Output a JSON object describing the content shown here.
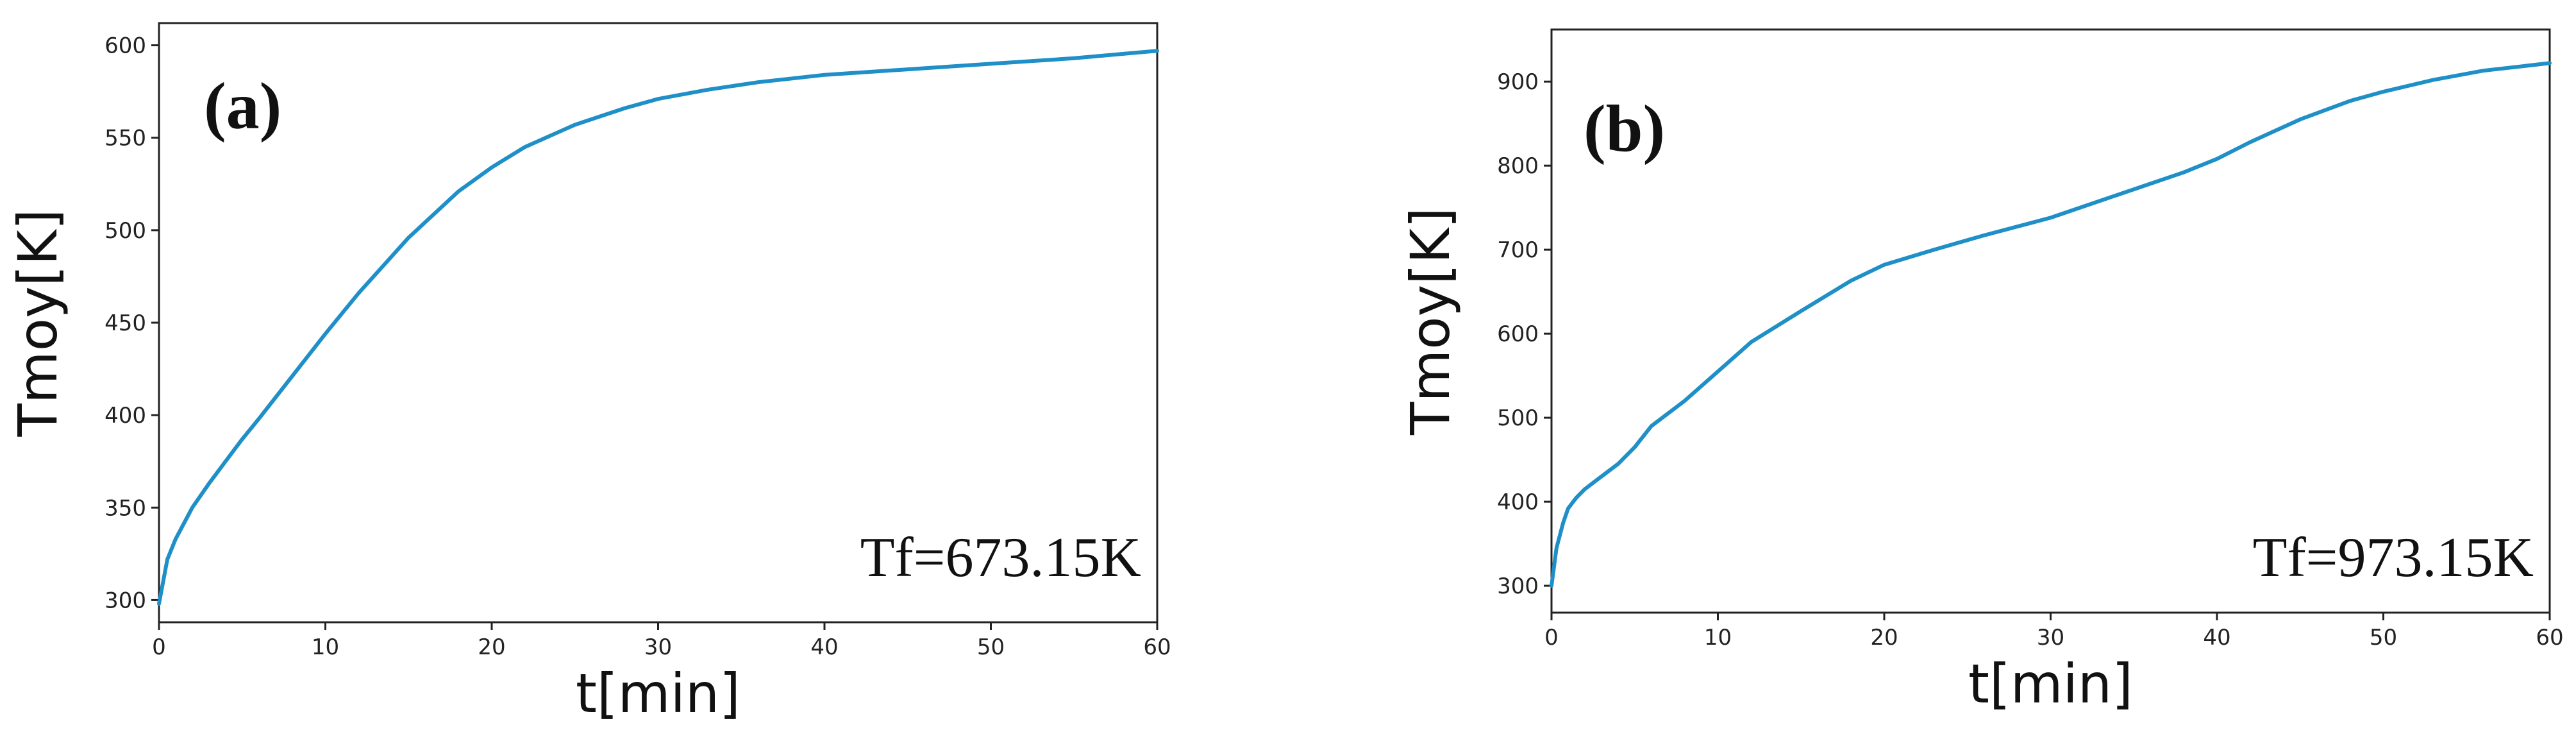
{
  "chart_data": [
    {
      "type": "line",
      "panel_label": "(a)",
      "annotation": "Tf=673.15K",
      "xlabel": "t[min]",
      "ylabel": "Tmoy[K]",
      "xlim": [
        0,
        60
      ],
      "ylim": [
        288,
        612
      ],
      "xticks": [
        0,
        10,
        20,
        30,
        40,
        50,
        60
      ],
      "yticks": [
        300,
        350,
        400,
        450,
        500,
        550,
        600
      ],
      "grid": false,
      "color": "#1f8fc8",
      "x": [
        0,
        0.5,
        1,
        2,
        3,
        4,
        5,
        6,
        8,
        10,
        12,
        15,
        18,
        20,
        22,
        25,
        28,
        30,
        33,
        36,
        40,
        45,
        50,
        55,
        60
      ],
      "y": [
        298,
        322,
        333,
        350,
        363,
        375,
        387,
        398,
        421,
        444,
        466,
        496,
        521,
        534,
        545,
        557,
        566,
        571,
        576,
        580,
        584,
        587,
        590,
        593,
        597
      ]
    },
    {
      "type": "line",
      "panel_label": "(b)",
      "annotation": "Tf=973.15K",
      "xlabel": "t[min]",
      "ylabel": "Tmoy[K]",
      "xlim": [
        0,
        60
      ],
      "ylim": [
        268,
        962
      ],
      "xticks": [
        0,
        10,
        20,
        30,
        40,
        50,
        60
      ],
      "yticks": [
        300,
        400,
        500,
        600,
        700,
        800,
        900
      ],
      "grid": false,
      "color": "#1f8fc8",
      "x": [
        0,
        0.3,
        0.7,
        1,
        1.5,
        2,
        3,
        4,
        5,
        6,
        8,
        10,
        12,
        15,
        18,
        20,
        23,
        26,
        30,
        34,
        38,
        40,
        42,
        45,
        48,
        50,
        53,
        56,
        60
      ],
      "y": [
        300,
        345,
        375,
        392,
        405,
        415,
        430,
        445,
        465,
        490,
        520,
        555,
        590,
        627,
        663,
        682,
        700,
        717,
        738,
        765,
        792,
        808,
        828,
        855,
        877,
        888,
        902,
        913,
        922
      ]
    }
  ]
}
